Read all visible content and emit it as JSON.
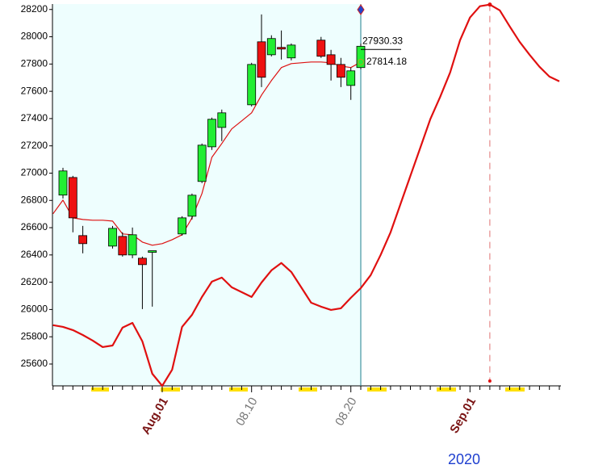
{
  "chart_data": {
    "type": "candlestick",
    "categories": [
      null,
      null,
      null,
      null,
      null,
      null,
      null,
      null,
      null,
      null,
      null,
      "Aug.01",
      null,
      null,
      null,
      null,
      null,
      null,
      null,
      null,
      "08.10",
      null,
      null,
      null,
      null,
      null,
      null,
      null,
      null,
      null,
      "08.20",
      null,
      null,
      null,
      null,
      null,
      null,
      null,
      null,
      null,
      null,
      null,
      "Sep.01",
      null,
      null,
      null,
      null,
      null,
      null,
      null,
      null,
      null
    ],
    "year_label": "2020",
    "ylim": [
      25440,
      28240
    ],
    "yticks": [
      25600,
      25800,
      26000,
      26200,
      26400,
      26600,
      26800,
      27000,
      27200,
      27400,
      27600,
      27800,
      28000,
      28200
    ],
    "up_color": "#22ee33",
    "down_color": "#ee1111",
    "candles": {
      "open": [
        null,
        26839,
        26968,
        26542,
        null,
        null,
        26465,
        26536,
        26400,
        26376,
        26419,
        null,
        null,
        26554,
        26684,
        26939,
        27193,
        27335,
        null,
        null,
        27501,
        27963,
        27868,
        27922,
        27845,
        null,
        null,
        27975,
        27868,
        27797,
        27643,
        27774,
        null,
        null,
        null,
        null,
        null,
        null,
        null,
        null,
        null,
        null,
        null,
        null,
        null,
        null,
        null,
        null,
        null,
        null,
        null,
        null
      ],
      "high": [
        null,
        27039,
        26980,
        26613,
        null,
        null,
        26613,
        26566,
        26601,
        26388,
        26431,
        null,
        null,
        26684,
        26850,
        27217,
        27407,
        27466,
        null,
        null,
        27809,
        28164,
        28011,
        28046,
        27951,
        null,
        null,
        27999,
        27904,
        27845,
        27774,
        27951,
        null,
        null,
        null,
        null,
        null,
        null,
        null,
        null,
        null,
        null,
        null,
        null,
        null,
        null,
        null,
        null,
        null,
        null,
        null,
        null
      ],
      "low": [
        null,
        26814,
        26566,
        26412,
        null,
        null,
        26447,
        26388,
        26376,
        26003,
        26021,
        null,
        null,
        26542,
        26660,
        26927,
        27170,
        27235,
        null,
        null,
        27489,
        27631,
        27856,
        27833,
        27827,
        null,
        null,
        27845,
        27679,
        27631,
        27537,
        27762,
        null,
        null,
        null,
        null,
        null,
        null,
        null,
        null,
        null,
        null,
        null,
        null,
        null,
        null,
        null,
        null,
        null,
        null,
        null,
        null
      ],
      "close": [
        null,
        27016,
        26672,
        26483,
        null,
        null,
        26595,
        26400,
        26548,
        26329,
        26431,
        null,
        null,
        26672,
        26838,
        27205,
        27395,
        27442,
        null,
        null,
        27797,
        27703,
        27987,
        27910,
        27939,
        null,
        null,
        27857,
        27797,
        27703,
        27750,
        27930.33,
        null,
        null,
        null,
        null,
        null,
        null,
        null,
        null,
        null,
        null,
        null,
        null,
        null,
        null,
        null,
        null,
        null,
        null,
        null,
        null
      ]
    },
    "series": [
      {
        "color": "#dd1111",
        "width": 1.2,
        "values": [
          26702,
          26802,
          26672,
          26660,
          26655,
          26655,
          26648,
          26554,
          26548,
          26494,
          26471,
          26483,
          26512,
          26548,
          26672,
          26850,
          27116,
          27217,
          27324,
          27383,
          27442,
          27572,
          27679,
          27774,
          27803,
          27809,
          27815,
          27815,
          27809,
          27785,
          27774,
          27814.18,
          null,
          null,
          null,
          null,
          null,
          null,
          null,
          null,
          null,
          null,
          null,
          null,
          null,
          null,
          null,
          null,
          null,
          null,
          null,
          null
        ]
      },
      {
        "color": "#e01010",
        "width": 2.2,
        "values": [
          25885,
          25873,
          25849,
          25813,
          25772,
          25725,
          25736,
          25867,
          25902,
          25766,
          25529,
          25440,
          25559,
          25873,
          25961,
          26092,
          26204,
          26234,
          26163,
          26127,
          26092,
          26198,
          26287,
          26341,
          26275,
          26163,
          26050,
          26021,
          25997,
          26009,
          26086,
          26157,
          26252,
          26400,
          26566,
          26773,
          26980,
          27187,
          27395,
          27560,
          27738,
          27975,
          28141,
          28224,
          28236,
          28194,
          28076,
          27963,
          27868,
          27780,
          27708,
          27673
        ]
      }
    ],
    "annotations": [
      {
        "text": "27930.33",
        "value": 27930.33
      },
      {
        "text": "27814.18",
        "value": 27814.18
      }
    ]
  }
}
